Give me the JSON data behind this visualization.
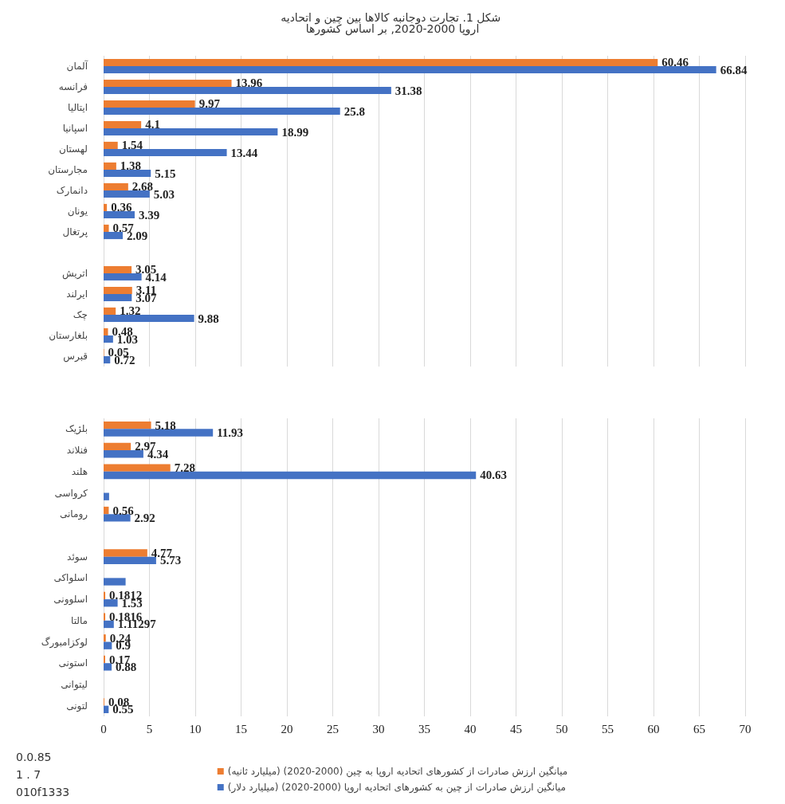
{
  "chart_data": [
    {
      "type": "bar",
      "orientation": "horizontal",
      "title": "شکل 1. تجارت دوجانبه کالاها بین چین و اتحادیه اروپا 2000-2020, بر اساس کشورها",
      "categories": [
        "آلمان",
        "فرانسه",
        "ایتالیا",
        "اسپانیا",
        "لهستان",
        "مجارستان",
        "دانمارک",
        "یونان",
        "پرتغال",
        null,
        "اتریش",
        "ایرلند",
        "چک",
        "بلغارستان",
        "قبرس"
      ],
      "series": [
        {
          "color": "#ed7d31",
          "values": [
            60.46,
            13.96,
            9.97,
            4.1,
            1.54,
            1.38,
            2.68,
            0.36,
            0.57,
            null,
            3.05,
            3.11,
            1.32,
            0.48,
            0.05
          ]
        },
        {
          "color": "#4472c4",
          "values": [
            66.84,
            31.38,
            25.8,
            18.99,
            13.44,
            5.15,
            5.03,
            3.39,
            2.09,
            null,
            4.14,
            3.07,
            9.88,
            1.03,
            0.72
          ]
        }
      ],
      "xlim": [
        0,
        70
      ],
      "xticks": [
        0,
        5,
        10,
        15,
        20,
        25,
        30,
        35,
        40,
        45,
        50,
        55,
        60,
        65,
        70
      ],
      "tick_labels": "y",
      "grid": "x",
      "data_labels": true
    },
    {
      "type": "bar",
      "orientation": "horizontal",
      "categories": [
        "بلژیک",
        "فنلاند",
        "هلند",
        "کرواسی",
        "رومانی",
        null,
        "سوئد",
        "اسلواکی",
        "اسلوونی",
        "مالتا",
        "لوکزامبورگ",
        "استونی",
        "لیتوانی",
        "لتونی"
      ],
      "series": [
        {
          "name": "میانگین ارزش صادرات از کشورهای اتحادیه اروپا به چین (2000-2020) (میلیارد ثانیه)",
          "color": "#ed7d31",
          "values": [
            5.18,
            2.97,
            7.28,
            null,
            0.56,
            null,
            4.77,
            null,
            0.1812,
            0.1816,
            0.24,
            0.17,
            null,
            0.08
          ],
          "value_labels": [
            "5.18",
            "2.97",
            "7.28",
            null,
            "0.56",
            null,
            "4.77",
            null,
            "0.1812",
            "0.1816",
            "0.24",
            "0.17",
            null,
            "0.08"
          ]
        },
        {
          "name": "میانگین ارزش صادرات از چین به کشورهای اتحادیه اروپا (2000-2020) (میلیارد دلار)",
          "color": "#4472c4",
          "values": [
            11.93,
            4.34,
            40.63,
            0.6,
            2.92,
            null,
            5.73,
            2.4,
            1.53,
            1.11297,
            0.9,
            0.88,
            null,
            0.55
          ],
          "value_labels": [
            "11.93",
            "4.34",
            "40.63",
            null,
            "2.92",
            null,
            "5.73",
            null,
            "1.53",
            "1.11297",
            "0.9",
            "0.88",
            null,
            "0.55"
          ]
        }
      ],
      "annotations": [
        "010f1333",
        "1 . 7",
        "0.0.85"
      ],
      "xlim": [
        0,
        70
      ],
      "xticks": [
        0,
        5,
        10,
        15,
        20,
        25,
        30,
        35,
        40,
        45,
        50,
        55,
        60,
        65,
        70
      ],
      "grid": "x",
      "legend": "bottom"
    }
  ]
}
